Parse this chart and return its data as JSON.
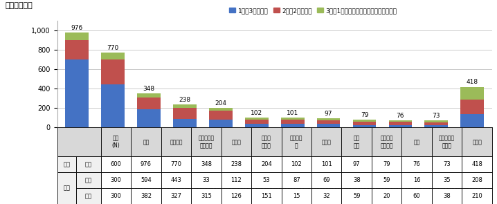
{
  "title": "＜上位抜粋＞",
  "legend_labels": [
    "1位：3ポイント",
    "2位：2ポイント",
    "3位：1ポイントを加算した合計ポイント"
  ],
  "categories": [
    "野球",
    "サッカー",
    "フィギュア\nスケート",
    "テニス",
    "バレー\nボール",
    "ボクシン\nグ",
    "ゴルフ",
    "駅伝\n競走",
    "モーター\nスポーツ",
    "水泳",
    "バスケット\nボール",
    "その他"
  ],
  "totals": [
    976,
    770,
    348,
    238,
    204,
    102,
    101,
    97,
    79,
    76,
    73,
    418
  ],
  "blue_values": [
    699,
    441,
    189,
    90,
    80,
    36,
    35,
    35,
    25,
    25,
    22,
    135
  ],
  "red_values": [
    201,
    259,
    121,
    110,
    90,
    44,
    45,
    40,
    35,
    32,
    32,
    155
  ],
  "green_values": [
    76,
    70,
    38,
    38,
    34,
    22,
    21,
    22,
    19,
    19,
    19,
    128
  ],
  "colors": [
    "#4472c4",
    "#c0504d",
    "#9bbb59"
  ],
  "ylim": [
    0,
    1100
  ],
  "yticks": [
    0,
    200,
    400,
    600,
    800,
    1000
  ],
  "table_headers": [
    "全体\n(N)",
    "野球",
    "サッカー",
    "フィギュア\nスケート",
    "テニス",
    "バレー\nボール",
    "ボクシン\nグ",
    "ゴルフ",
    "駅伝\n競走",
    "モーター\nスポーツ",
    "水泳",
    "バスケット\nボール",
    "その他"
  ],
  "row_outer_labels": [
    "全体",
    "性別"
  ],
  "row_inner_labels": [
    "全体",
    "男性",
    "女性"
  ],
  "table_data": [
    [
      600,
      976,
      770,
      348,
      238,
      204,
      102,
      101,
      97,
      79,
      76,
      73,
      418
    ],
    [
      300,
      594,
      443,
      33,
      112,
      53,
      87,
      69,
      38,
      59,
      16,
      35,
      208
    ],
    [
      300,
      382,
      327,
      315,
      126,
      151,
      15,
      32,
      59,
      20,
      60,
      38,
      210
    ]
  ],
  "bar_width": 0.65,
  "grid_color": "#cccccc",
  "bg_color": "#ffffff",
  "table_header_bg": "#d8d8d8",
  "table_label_bg": "#f0f0f0"
}
